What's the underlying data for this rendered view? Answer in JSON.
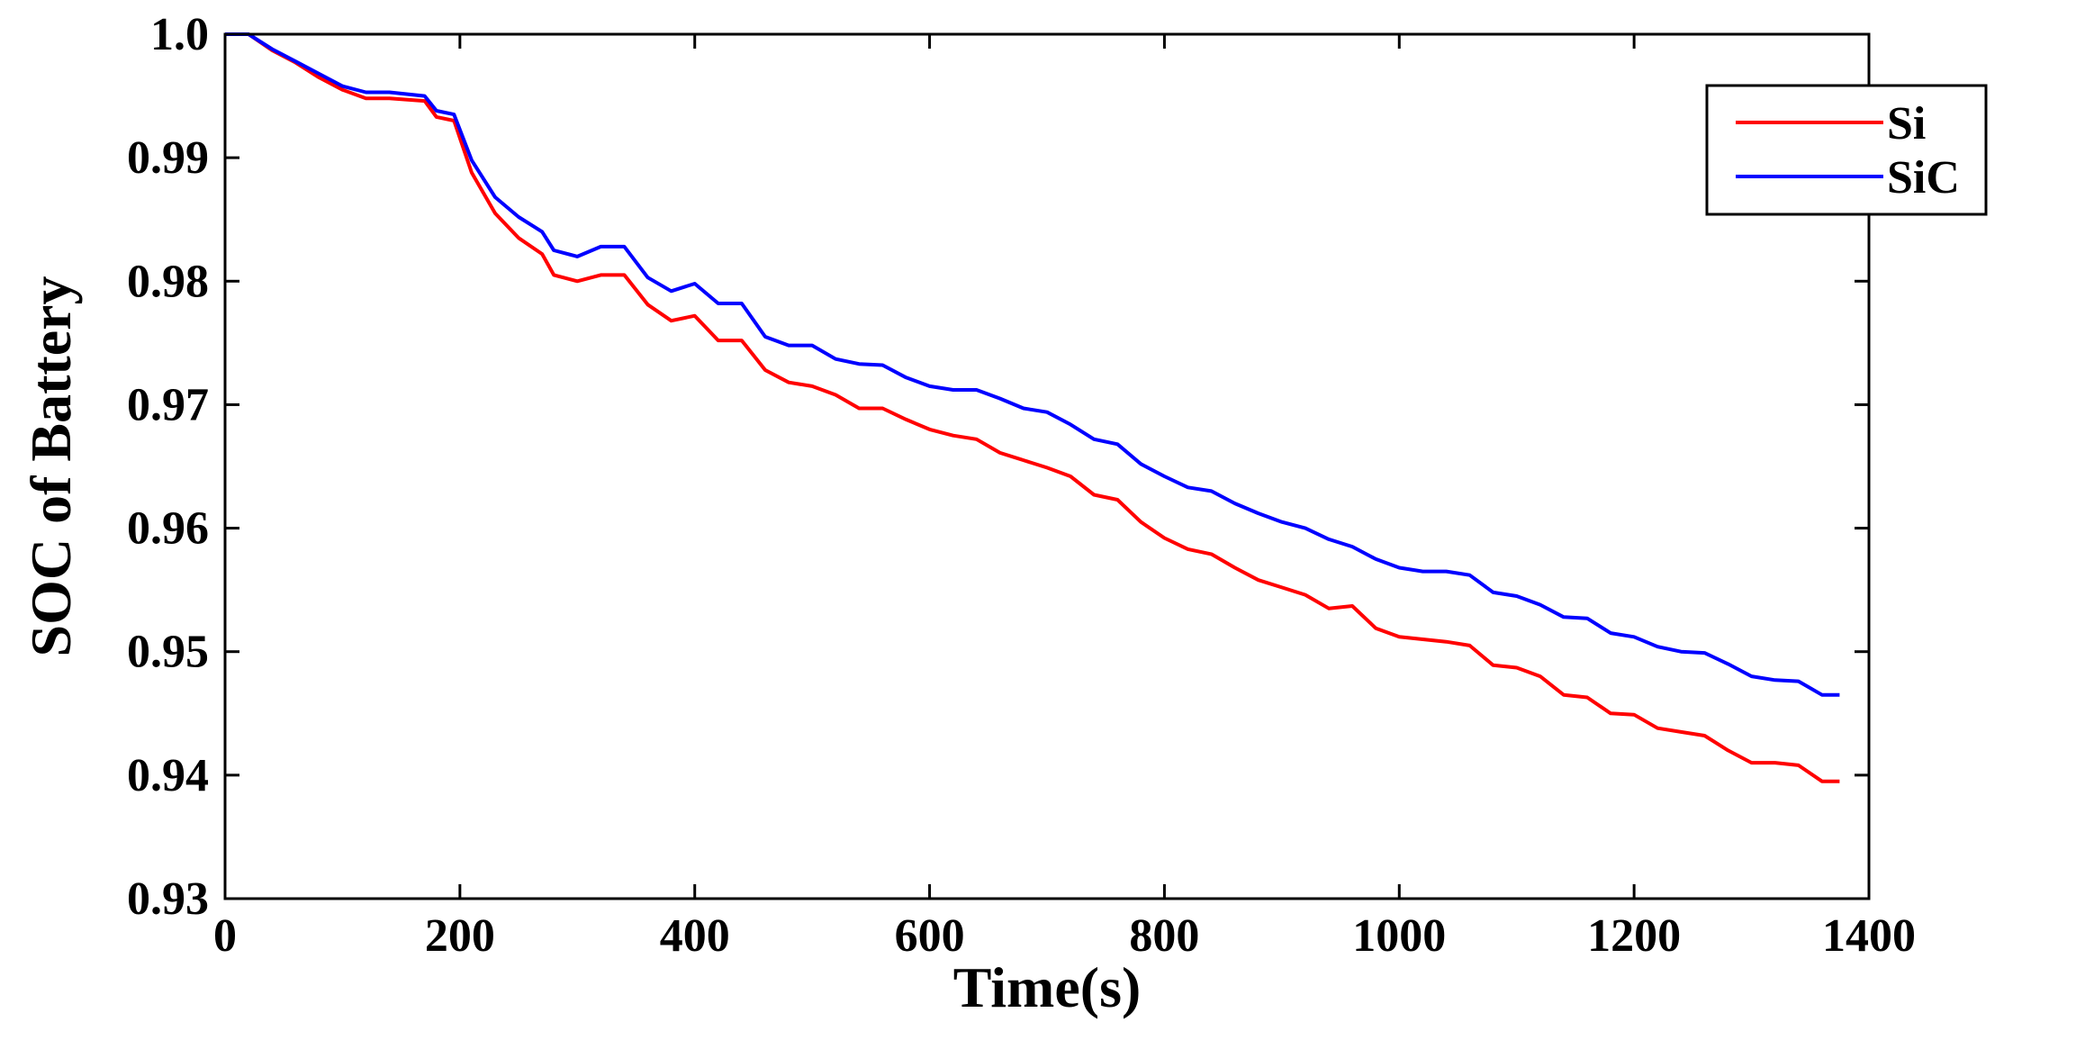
{
  "chart_data": {
    "type": "line",
    "title": "",
    "xlabel": "Time(s)",
    "ylabel": "SOC of Battery",
    "xlim": [
      0,
      1400
    ],
    "ylim": [
      0.93,
      1.0
    ],
    "xticks": [
      0,
      200,
      400,
      600,
      800,
      1000,
      1200,
      1400
    ],
    "xtick_labels": [
      "0",
      "200",
      "400",
      "600",
      "800",
      "1000",
      "1200",
      "1400"
    ],
    "yticks": [
      0.93,
      0.94,
      0.95,
      0.96,
      0.97,
      0.98,
      0.99,
      1.0
    ],
    "ytick_labels": [
      "0.93",
      "0.94",
      "0.95",
      "0.96",
      "0.97",
      "0.98",
      "0.99",
      "1.0"
    ],
    "grid": false,
    "legend_position": "top-right",
    "series": [
      {
        "name": "Si",
        "color": "#ff0000",
        "x": [
          0,
          20,
          40,
          60,
          80,
          100,
          120,
          140,
          170,
          180,
          195,
          210,
          230,
          250,
          270,
          280,
          300,
          320,
          340,
          360,
          380,
          400,
          420,
          440,
          460,
          480,
          500,
          520,
          540,
          560,
          580,
          600,
          620,
          640,
          660,
          680,
          700,
          720,
          740,
          760,
          780,
          800,
          820,
          840,
          860,
          880,
          900,
          920,
          940,
          960,
          980,
          1000,
          1020,
          1040,
          1060,
          1080,
          1100,
          1120,
          1140,
          1160,
          1180,
          1200,
          1220,
          1240,
          1260,
          1280,
          1300,
          1320,
          1340,
          1360,
          1375
        ],
        "y": [
          1.0,
          1.0,
          0.9987,
          0.9977,
          0.9965,
          0.9955,
          0.9948,
          0.9948,
          0.9946,
          0.9933,
          0.993,
          0.9888,
          0.9855,
          0.9835,
          0.9822,
          0.9805,
          0.98,
          0.9805,
          0.9805,
          0.9781,
          0.9768,
          0.9772,
          0.9752,
          0.9752,
          0.9728,
          0.9718,
          0.9715,
          0.9708,
          0.9697,
          0.9697,
          0.9688,
          0.968,
          0.9675,
          0.9672,
          0.9661,
          0.9655,
          0.9649,
          0.9642,
          0.9627,
          0.9623,
          0.9605,
          0.9592,
          0.9583,
          0.9579,
          0.9568,
          0.9558,
          0.9552,
          0.9546,
          0.9535,
          0.9537,
          0.9519,
          0.9512,
          0.951,
          0.9508,
          0.9505,
          0.9489,
          0.9487,
          0.948,
          0.9465,
          0.9463,
          0.945,
          0.9449,
          0.9438,
          0.9435,
          0.9432,
          0.942,
          0.941,
          0.941,
          0.9408,
          0.9395,
          0.9395
        ]
      },
      {
        "name": "SiC",
        "color": "#0000ff",
        "x": [
          0,
          20,
          40,
          60,
          80,
          100,
          120,
          140,
          170,
          180,
          195,
          210,
          230,
          250,
          270,
          280,
          300,
          320,
          340,
          360,
          380,
          400,
          420,
          440,
          460,
          480,
          500,
          520,
          540,
          560,
          580,
          600,
          620,
          640,
          660,
          680,
          700,
          720,
          740,
          760,
          780,
          800,
          820,
          840,
          860,
          880,
          900,
          920,
          940,
          960,
          980,
          1000,
          1020,
          1040,
          1060,
          1080,
          1100,
          1120,
          1140,
          1160,
          1180,
          1200,
          1220,
          1240,
          1260,
          1280,
          1300,
          1320,
          1340,
          1360,
          1375
        ],
        "y": [
          1.0,
          1.0,
          0.9988,
          0.9978,
          0.9968,
          0.9958,
          0.9953,
          0.9953,
          0.995,
          0.9938,
          0.9935,
          0.9898,
          0.9868,
          0.9852,
          0.984,
          0.9825,
          0.982,
          0.9828,
          0.9828,
          0.9803,
          0.9792,
          0.9798,
          0.9782,
          0.9782,
          0.9755,
          0.9748,
          0.9748,
          0.9737,
          0.9733,
          0.9732,
          0.9722,
          0.9715,
          0.9712,
          0.9712,
          0.9705,
          0.9697,
          0.9694,
          0.9684,
          0.9672,
          0.9668,
          0.9652,
          0.9642,
          0.9633,
          0.963,
          0.962,
          0.9612,
          0.9605,
          0.96,
          0.9591,
          0.9585,
          0.9575,
          0.9568,
          0.9565,
          0.9565,
          0.9562,
          0.9548,
          0.9545,
          0.9538,
          0.9528,
          0.9527,
          0.9515,
          0.9512,
          0.9504,
          0.95,
          0.9499,
          0.949,
          0.948,
          0.9477,
          0.9476,
          0.9465,
          0.9465
        ]
      }
    ]
  }
}
